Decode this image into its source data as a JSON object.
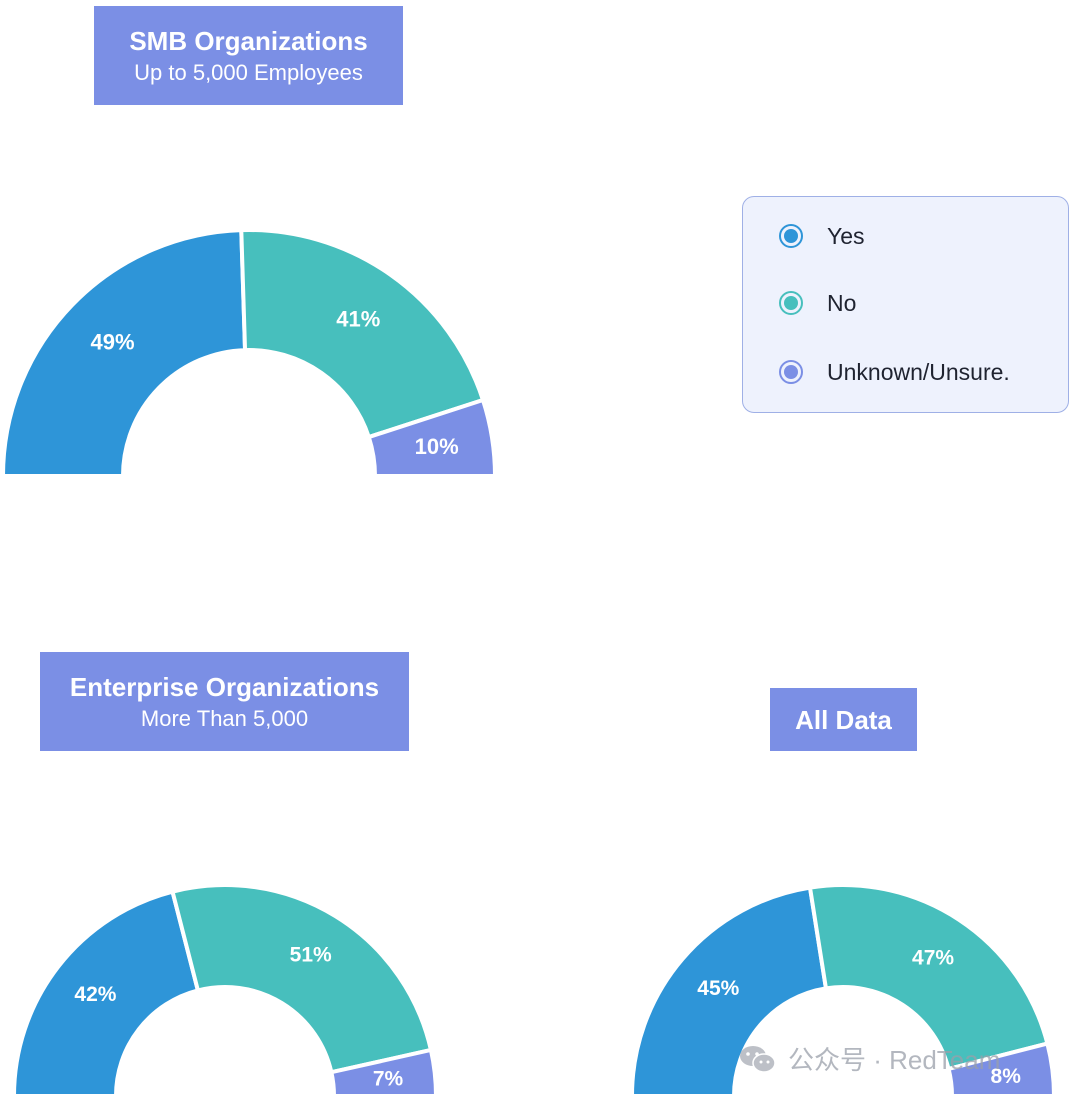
{
  "titles": {
    "smb": {
      "main": "SMB Organizations",
      "sub": "Up to 5,000 Employees"
    },
    "enterprise": {
      "main": "Enterprise Organizations",
      "sub": "More Than 5,000"
    },
    "all": {
      "main": "All Data"
    }
  },
  "legend": [
    {
      "label": "Yes",
      "color": "#2e95d8"
    },
    {
      "label": "No",
      "color": "#47bfbd"
    },
    {
      "label": "Unknown/Unsure.",
      "color": "#7b8fe5"
    }
  ],
  "chart_data": [
    {
      "type": "pie",
      "title": "SMB Organizations",
      "categories": [
        "Yes",
        "No",
        "Unknown/Unsure."
      ],
      "values": [
        49,
        41,
        10
      ],
      "labels": [
        "49%",
        "41%",
        "10%"
      ]
    },
    {
      "type": "pie",
      "title": "Enterprise Organizations",
      "categories": [
        "Yes",
        "No",
        "Unknown/Unsure."
      ],
      "values": [
        42,
        51,
        7
      ],
      "labels": [
        "42%",
        "51%",
        "7%"
      ]
    },
    {
      "type": "pie",
      "title": "All Data",
      "categories": [
        "Yes",
        "No",
        "Unknown/Unsure."
      ],
      "values": [
        45,
        47,
        8
      ],
      "labels": [
        "45%",
        "47%",
        "8%"
      ]
    }
  ],
  "watermark": {
    "text": "公众号 · RedTeam",
    "icon": "wechat-icon"
  }
}
